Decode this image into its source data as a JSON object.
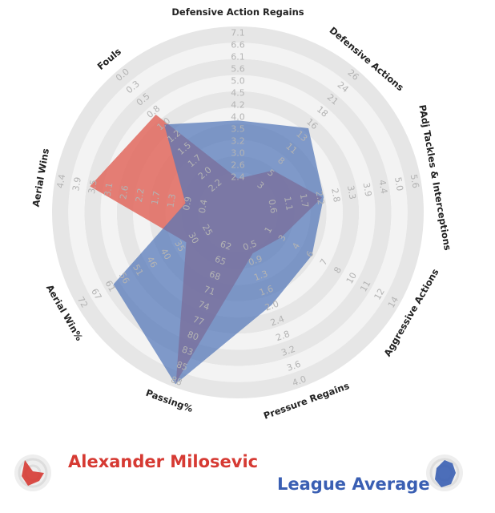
{
  "chart_data": {
    "type": "radar",
    "axes": [
      {
        "label": "Defensive Action Regains",
        "ticks": [
          "2.4",
          "2.6",
          "3.0",
          "3.2",
          "3.5",
          "4.0",
          "4.2",
          "4.5",
          "5.0",
          "5.6",
          "6.1",
          "6.6",
          "7.1"
        ]
      },
      {
        "label": "Defensive Actions",
        "ticks": [
          "3",
          "5",
          "8",
          "11",
          "13",
          "16",
          "18",
          "21",
          "24",
          "26"
        ]
      },
      {
        "label": "PAdj Tackles & Interceptions",
        "ticks": [
          "0.6",
          "1.1",
          "1.7",
          "2.2",
          "2.8",
          "3.3",
          "3.9",
          "4.4",
          "5.0",
          "5.6"
        ]
      },
      {
        "label": "Aggressive Actions",
        "ticks": [
          "1",
          "3",
          "4",
          "6",
          "7",
          "8",
          "10",
          "11",
          "12",
          "14"
        ]
      },
      {
        "label": "Pressure Regains",
        "ticks": [
          "0.5",
          "0.9",
          "1.3",
          "1.6",
          "2.0",
          "2.4",
          "2.8",
          "3.2",
          "3.6",
          "4.0"
        ]
      },
      {
        "label": "Passing%",
        "ticks": [
          "62",
          "65",
          "68",
          "71",
          "74",
          "77",
          "80",
          "83",
          "85",
          "88"
        ]
      },
      {
        "label": "Aerial Win%",
        "ticks": [
          "25",
          "30",
          "35",
          "40",
          "46",
          "51",
          "56",
          "61",
          "67",
          "72"
        ]
      },
      {
        "label": "Aerial Wins",
        "ticks": [
          "0.4",
          "0.9",
          "1.3",
          "1.7",
          "2.2",
          "2.6",
          "3.1",
          "3.5",
          "3.9",
          "4.4"
        ]
      },
      {
        "label": "Fouls",
        "ticks": [
          "2.2",
          "2.0",
          "1.7",
          "1.5",
          "1.2",
          "1.0",
          "0.8",
          "0.5",
          "0.3",
          "0.0"
        ]
      }
    ],
    "series": [
      {
        "name": "Alexander Milosevic",
        "color": "#e0675d",
        "values": [
          0.06,
          0.19,
          0.38,
          0.16,
          0.12,
          0.97,
          0.22,
          0.78,
          0.64
        ]
      },
      {
        "name": "League Average",
        "color": "#5276b8",
        "values": [
          0.42,
          0.53,
          0.39,
          0.38,
          0.46,
          0.98,
          0.74,
          0.18,
          0.56
        ]
      }
    ]
  },
  "legend": {
    "player": {
      "name": "Alexander Milosevic",
      "color": "#d63a33",
      "icon": "radar-badge-icon"
    },
    "average": {
      "name": "League Average",
      "color": "#3a5fb3",
      "icon": "radar-badge-icon"
    }
  }
}
